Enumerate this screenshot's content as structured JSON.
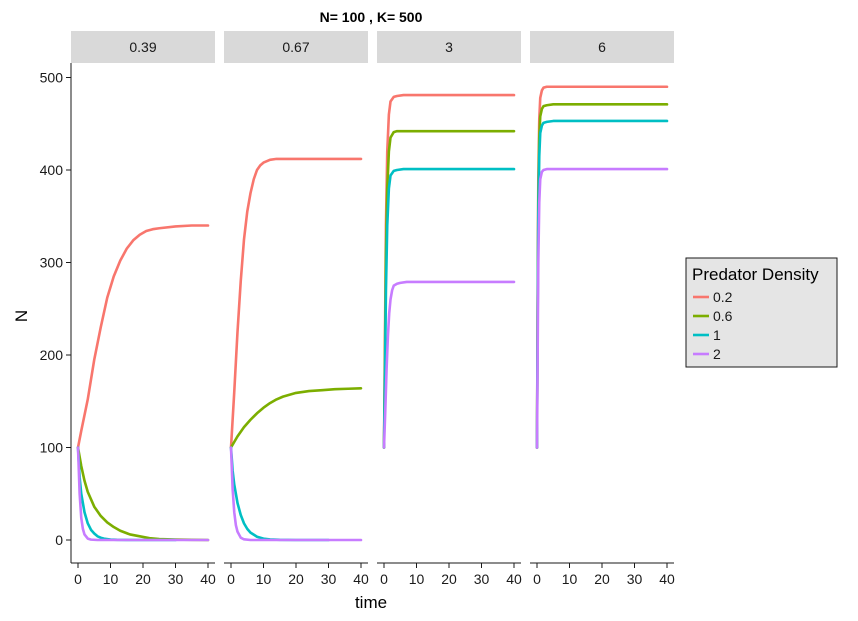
{
  "chart_data": {
    "type": "line",
    "title": "N= 100 , K= 500",
    "xlabel": "time",
    "ylabel": "N",
    "xlim": [
      0,
      40
    ],
    "ylim": [
      0,
      500
    ],
    "x_ticks": [
      0,
      10,
      20,
      30,
      40
    ],
    "x_tick_labels": [
      "0",
      "10",
      "20",
      "30",
      "40"
    ],
    "y_ticks": [
      0,
      100,
      200,
      300,
      400,
      500
    ],
    "y_tick_labels": [
      "0",
      "100",
      "200",
      "300",
      "400",
      "500"
    ],
    "grid": false,
    "legend": {
      "title": "Predator Density",
      "position": "right",
      "entries": [
        "0.2",
        "0.6",
        "1",
        "2"
      ]
    },
    "colors": {
      "0.2": "#F8766D",
      "0.6": "#7CAE00",
      "1": "#00BFC4",
      "2": "#C77CFF"
    },
    "facets": [
      {
        "label": "0.39",
        "series": [
          {
            "name": "0.2",
            "x": [
              0,
              1,
              2,
              3,
              5,
              7,
              9,
              11,
              13,
              15,
              17,
              19,
              21,
              23,
              25,
              30,
              35,
              40
            ],
            "values": [
              100,
              118,
              135,
              152,
              195,
              230,
              262,
              285,
              302,
              315,
              324,
              330,
              334,
              336,
              337,
              339,
              340,
              340
            ]
          },
          {
            "name": "0.6",
            "x": [
              0,
              1,
              2,
              3,
              5,
              7,
              9,
              11,
              13,
              16,
              19,
              22,
              25,
              30,
              35,
              40
            ],
            "values": [
              100,
              80,
              64,
              52,
              36,
              26,
              19,
              14,
              10,
              6,
              4,
              2,
              1,
              0.5,
              0.2,
              0
            ]
          },
          {
            "name": "1",
            "x": [
              0,
              0.5,
              1,
              2,
              3,
              4,
              5,
              6,
              7,
              8,
              10,
              12,
              15,
              20,
              25,
              30
            ],
            "values": [
              100,
              68,
              50,
              30,
              18,
              11,
              7,
              4,
              2.5,
              1.5,
              0.5,
              0.2,
              0.05,
              0,
              0,
              0
            ]
          },
          {
            "name": "2",
            "x": [
              0,
              0.5,
              1,
              1.5,
              2,
              3,
              4,
              6,
              10,
              20,
              30,
              40
            ],
            "values": [
              100,
              50,
              24,
              12,
              6,
              1.5,
              0.4,
              0,
              0,
              0,
              0,
              0
            ]
          }
        ]
      },
      {
        "label": "0.67",
        "series": [
          {
            "name": "0.2",
            "x": [
              0,
              1,
              2,
              3,
              4,
              5,
              6,
              7,
              8,
              9,
              10,
              12,
              14,
              17,
              20,
              25,
              30,
              40
            ],
            "values": [
              100,
              160,
              225,
              280,
              325,
              355,
              375,
              390,
              400,
              405,
              408,
              411,
              412,
              412,
              412,
              412,
              412,
              412
            ]
          },
          {
            "name": "0.6",
            "x": [
              0,
              2,
              4,
              6,
              8,
              10,
              12,
              14,
              16,
              18,
              20,
              24,
              28,
              32,
              36,
              40
            ],
            "values": [
              100,
              112,
              122,
              130,
              137,
              143,
              148,
              152,
              155,
              157,
              159,
              161,
              162,
              163,
              163.5,
              164
            ]
          },
          {
            "name": "1",
            "x": [
              0,
              0.5,
              1,
              2,
              3,
              4,
              5,
              6,
              8,
              10,
              12,
              15,
              20,
              25,
              30
            ],
            "values": [
              100,
              75,
              60,
              40,
              27,
              18,
              12,
              8,
              3.5,
              1.5,
              0.6,
              0.2,
              0,
              0,
              0
            ]
          },
          {
            "name": "2",
            "x": [
              0,
              0.5,
              1,
              1.5,
              2,
              3,
              4,
              6,
              10,
              20,
              30,
              40
            ],
            "values": [
              100,
              55,
              30,
              16,
              9,
              2.5,
              0.7,
              0,
              0,
              0,
              0,
              0
            ]
          }
        ]
      },
      {
        "label": "3",
        "series": [
          {
            "name": "0.2",
            "x": [
              0,
              0.3,
              0.6,
              1,
              1.5,
              2,
              3,
              4,
              6,
              10,
              20,
              30,
              40
            ],
            "values": [
              100,
              220,
              340,
              420,
              460,
              474,
              479,
              480,
              481,
              481,
              481,
              481,
              481
            ]
          },
          {
            "name": "0.6",
            "x": [
              0,
              0.3,
              0.6,
              1,
              1.5,
              2,
              3,
              4,
              6,
              10,
              20,
              30,
              40
            ],
            "values": [
              100,
              200,
              310,
              380,
              420,
              435,
              441,
              442,
              442,
              442,
              442,
              442,
              442
            ]
          },
          {
            "name": "1",
            "x": [
              0,
              0.3,
              0.6,
              1,
              1.5,
              2,
              3,
              4,
              6,
              10,
              20,
              30,
              40
            ],
            "values": [
              100,
              180,
              270,
              340,
              380,
              394,
              399,
              400,
              401,
              401,
              401,
              401,
              401
            ]
          },
          {
            "name": "2",
            "x": [
              0,
              0.4,
              0.8,
              1.2,
              1.6,
              2,
              2.5,
              3,
              4,
              5,
              7,
              10,
              20,
              30,
              40
            ],
            "values": [
              100,
              140,
              185,
              220,
              245,
              260,
              270,
              275,
              277,
              278,
              279,
              279,
              279,
              279,
              279
            ]
          }
        ]
      },
      {
        "label": "6",
        "series": [
          {
            "name": "0.2",
            "x": [
              0,
              0.2,
              0.4,
              0.7,
              1,
              1.5,
              2,
              3,
              5,
              10,
              20,
              30,
              40
            ],
            "values": [
              100,
              260,
              390,
              455,
              478,
              486,
              489,
              490,
              490,
              490,
              490,
              490,
              490
            ]
          },
          {
            "name": "0.6",
            "x": [
              0,
              0.2,
              0.4,
              0.7,
              1,
              1.5,
              2,
              3,
              5,
              10,
              20,
              30,
              40
            ],
            "values": [
              100,
              250,
              370,
              435,
              458,
              466,
              469,
              470,
              471,
              471,
              471,
              471,
              471
            ]
          },
          {
            "name": "1",
            "x": [
              0,
              0.2,
              0.4,
              0.7,
              1,
              1.5,
              2,
              3,
              5,
              10,
              20,
              30,
              40
            ],
            "values": [
              100,
              240,
              350,
              415,
              440,
              448,
              451,
              452,
              453,
              453,
              453,
              453,
              453
            ]
          },
          {
            "name": "2",
            "x": [
              0,
              0.2,
              0.4,
              0.7,
              1,
              1.5,
              2,
              3,
              5,
              10,
              20,
              30,
              40
            ],
            "values": [
              100,
              200,
              300,
              365,
              390,
              398,
              400,
              401,
              401,
              401,
              401,
              401,
              401
            ]
          }
        ]
      }
    ]
  }
}
